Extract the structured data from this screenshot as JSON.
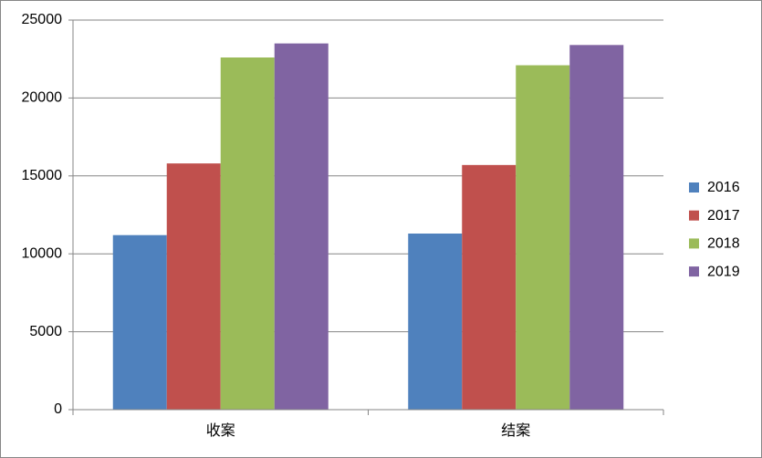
{
  "chart_data": {
    "type": "bar",
    "categories": [
      "收案",
      "结案"
    ],
    "series": [
      {
        "name": "2016",
        "color": "#4f81bd",
        "values": [
          11200,
          11300
        ]
      },
      {
        "name": "2017",
        "color": "#c0504d",
        "values": [
          15800,
          15700
        ]
      },
      {
        "name": "2018",
        "color": "#9bbb59",
        "values": [
          22600,
          22100
        ]
      },
      {
        "name": "2019",
        "color": "#8064a2",
        "values": [
          23500,
          23400
        ]
      }
    ],
    "ylim": [
      0,
      25000
    ],
    "yticks": [
      0,
      5000,
      10000,
      15000,
      20000,
      25000
    ],
    "grid": true,
    "legend": "right"
  }
}
